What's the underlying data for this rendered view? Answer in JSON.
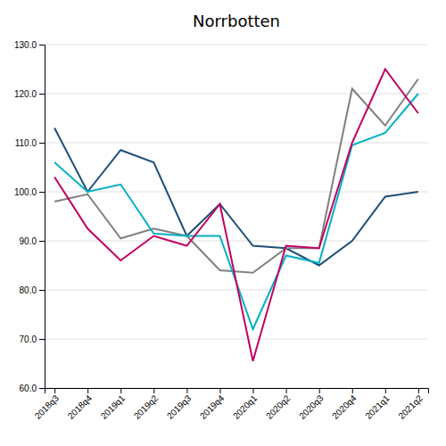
{
  "chart_data": {
    "type": "line",
    "title": "Norrbotten",
    "categories": [
      "2018q3",
      "2018q4",
      "2019q1",
      "2019q2",
      "2019q3",
      "2019q4",
      "2020q1",
      "2020q2",
      "2020q3",
      "2020q4",
      "2021q1",
      "2021q2"
    ],
    "series": [
      {
        "color": "#1F4E79",
        "values": [
          113.0,
          100.0,
          108.5,
          106.0,
          91.0,
          97.5,
          89.0,
          88.5,
          85.0,
          90.0,
          99.0,
          100.0
        ]
      },
      {
        "color": "#808080",
        "values": [
          98.0,
          99.5,
          90.5,
          92.5,
          91.0,
          84.0,
          83.5,
          88.5,
          88.5,
          121.0,
          113.5,
          123.0
        ]
      },
      {
        "color": "#00B0C8",
        "values": [
          106.0,
          100.0,
          101.5,
          91.5,
          91.0,
          91.0,
          72.0,
          87.0,
          85.5,
          109.5,
          112.0,
          120.0
        ]
      },
      {
        "color": "#C00060",
        "values": [
          103.0,
          92.5,
          86.0,
          91.0,
          89.0,
          97.5,
          65.5,
          89.0,
          88.5,
          110.0,
          125.0,
          116.0
        ]
      }
    ],
    "ylim": [
      60.0,
      130.0
    ],
    "yticks": [
      {
        "value": 60.0,
        "label": "60.0"
      },
      {
        "value": 70.0,
        "label": "70.0"
      },
      {
        "value": 80.0,
        "label": "80.0"
      },
      {
        "value": 90.0,
        "label": "90.0"
      },
      {
        "value": 100.0,
        "label": "100.0"
      },
      {
        "value": 110.0,
        "label": "110.0"
      },
      {
        "value": 120.0,
        "label": "120.0"
      },
      {
        "value": 130.0,
        "label": "130.0"
      }
    ],
    "grid": true
  }
}
